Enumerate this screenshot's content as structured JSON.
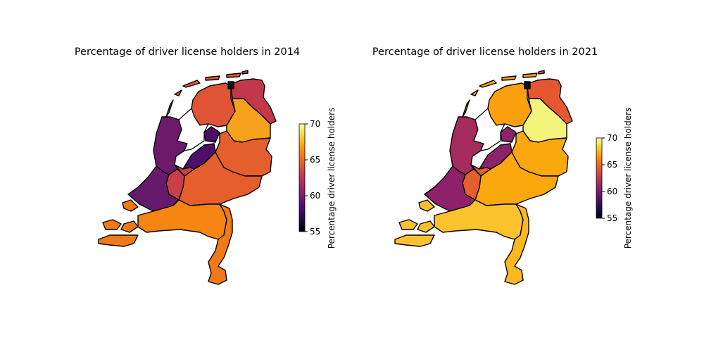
{
  "panels": [
    {
      "title": "Percentage of driver license holders in 2014",
      "colorbar": {
        "label": "Percentage driver license holders",
        "min": 55,
        "max": 70,
        "ticks": [
          "55",
          "60",
          "65",
          "70"
        ]
      },
      "provinces": {
        "Groningen": "#c1384a",
        "Friesland": "#e05436",
        "Drenthe": "#f8a11c",
        "Noord-Holland": "#6d1a6b",
        "Flevoland": "#4d0f69",
        "Overijssel": "#e45f2b",
        "Gelderland": "#e45f2b",
        "Utrecht": "#c83f45",
        "Zuid-Holland": "#661a6c",
        "Zeeland": "#f17a16",
        "Noord-Brabant": "#f68511",
        "Limburg": "#f17a16"
      }
    },
    {
      "title": "Percentage of driver license holders in 2021",
      "colorbar": {
        "label": "Percentage driver license holders",
        "min": 55,
        "max": 70,
        "ticks": [
          "55",
          "60",
          "65",
          "70"
        ]
      },
      "provinces": {
        "Groningen": "#e6572f",
        "Friesland": "#fba10f",
        "Drenthe": "#f4f37c",
        "Noord-Holland": "#a42b5c",
        "Flevoland": "#8c2269",
        "Overijssel": "#fba80f",
        "Gelderland": "#fba80f",
        "Utrecht": "#e35f2d",
        "Zuid-Holland": "#8e2169",
        "Zeeland": "#fac12e",
        "Noord-Brabant": "#fac32e",
        "Limburg": "#fbb91f"
      }
    }
  ],
  "colormap": [
    "#000004",
    "#1b0c41",
    "#4a0c6b",
    "#781c6d",
    "#a52c60",
    "#cf4446",
    "#ed6925",
    "#fb9b06",
    "#f7d13d",
    "#fcffa4"
  ]
}
